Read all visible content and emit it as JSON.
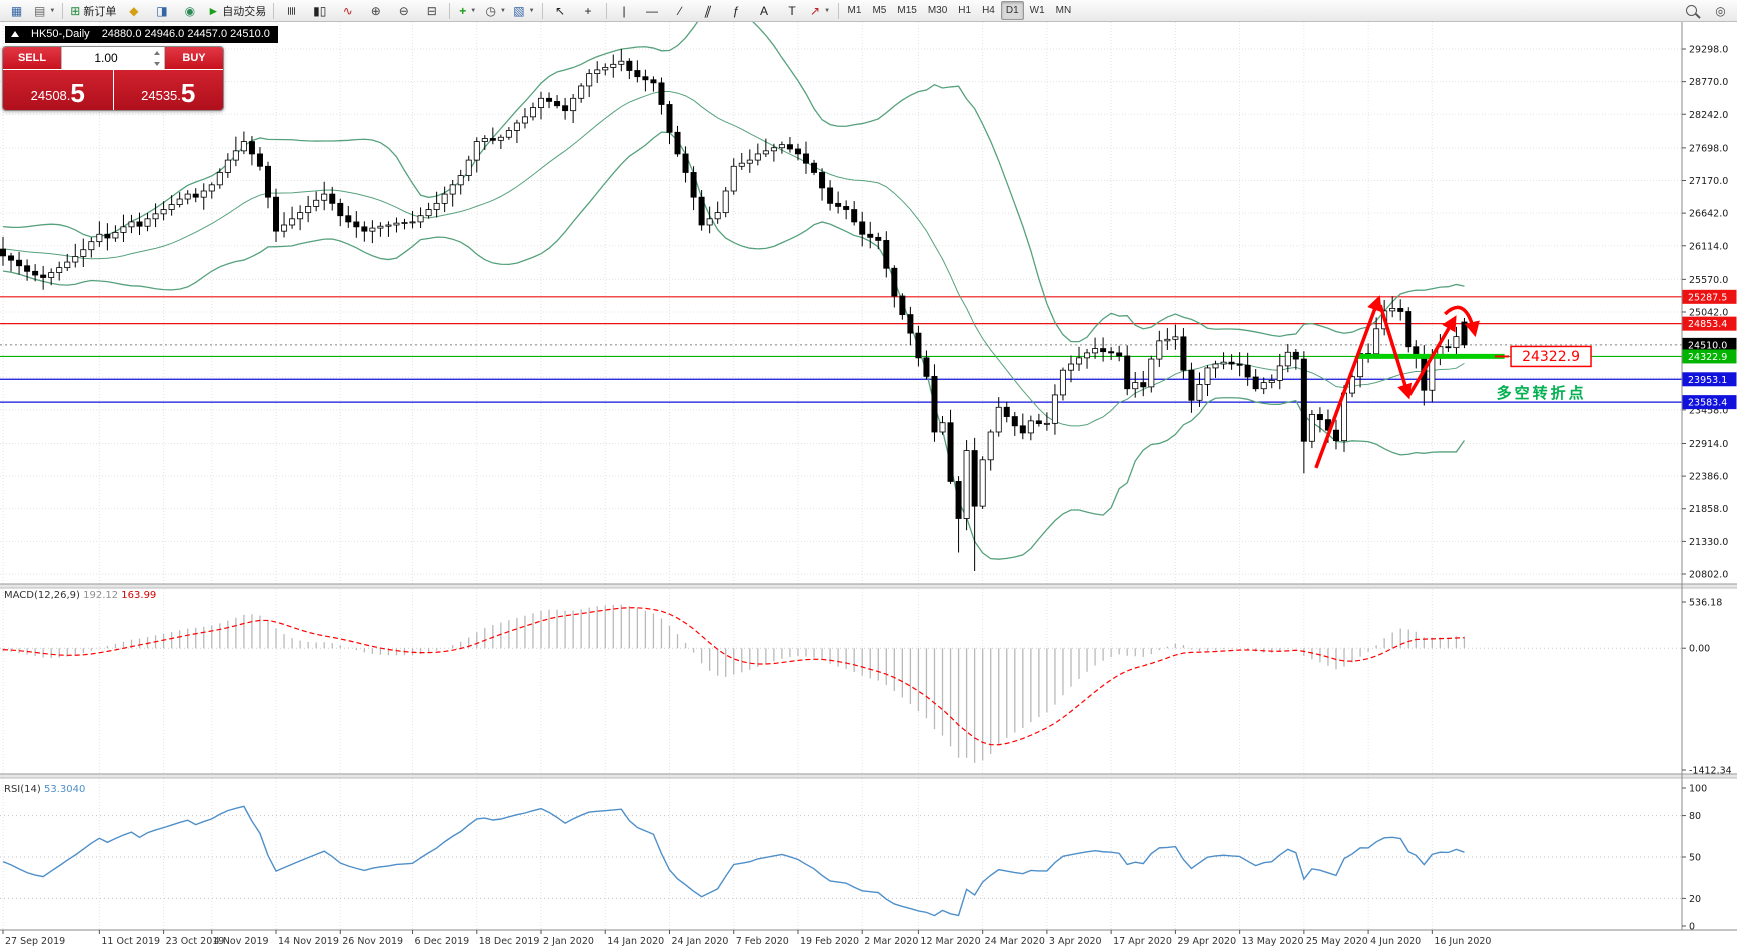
{
  "toolbar": {
    "buttons": [
      {
        "name": "new-chart",
        "icon": "new-chart-icon"
      },
      {
        "name": "profiles",
        "icon": "profiles-icon",
        "caret": true
      },
      {
        "name": "sep1",
        "sep": true
      },
      {
        "name": "new-order",
        "icon": "new-order-icon",
        "label": "新订单"
      },
      {
        "name": "market-watch",
        "icon": "market-watch-icon"
      },
      {
        "name": "data-window",
        "icon": "data-window-icon"
      },
      {
        "name": "navigator",
        "icon": "navigator-icon"
      },
      {
        "name": "autotrading",
        "icon": "autotrading-icon",
        "label": "自动交易"
      },
      {
        "name": "sep2",
        "sep": true
      },
      {
        "name": "bar-chart-mode",
        "icon": "bars-icon"
      },
      {
        "name": "candle-chart-mode",
        "icon": "candles-icon"
      },
      {
        "name": "line-chart-mode",
        "icon": "line-chart-icon"
      },
      {
        "name": "zoom-in",
        "icon": "zoom-in-icon"
      },
      {
        "name": "zoom-out",
        "icon": "zoom-out-icon"
      },
      {
        "name": "tile-windows",
        "icon": "tile-windows-icon"
      },
      {
        "name": "sep3",
        "sep": true
      },
      {
        "name": "indicators",
        "icon": "indicators-icon",
        "caret": true
      },
      {
        "name": "periods",
        "icon": "periods-icon",
        "caret": true
      },
      {
        "name": "templates",
        "icon": "templates-icon",
        "caret": true
      },
      {
        "name": "sep4",
        "sep": true
      },
      {
        "name": "cursor",
        "icon": "cursor-icon"
      },
      {
        "name": "crosshair",
        "icon": "crosshair-icon"
      },
      {
        "name": "sep5",
        "sep": true
      },
      {
        "name": "vertical-line",
        "icon": "vertical-line-icon"
      },
      {
        "name": "horizontal-line",
        "icon": "horizontal-line-icon"
      },
      {
        "name": "trendline",
        "icon": "trendline-icon"
      },
      {
        "name": "channel",
        "icon": "channel-icon"
      },
      {
        "name": "fibonacci",
        "icon": "fibonacci-icon"
      },
      {
        "name": "text",
        "icon": "text-icon"
      },
      {
        "name": "text-label",
        "icon": "text-label-icon"
      },
      {
        "name": "shapes",
        "icon": "shapes-icon",
        "caret": true
      },
      {
        "name": "sep6",
        "sep": true
      }
    ],
    "timeframes": [
      "M1",
      "M5",
      "M15",
      "M30",
      "H1",
      "H4",
      "D1",
      "W1",
      "MN"
    ],
    "active_timeframe": "D1"
  },
  "chart": {
    "title": "HK50-,Daily",
    "ohlc": "24880.0 24946.0 24457.0 24510.0"
  },
  "trade_panel": {
    "sell_label": "SELL",
    "buy_label": "BUY",
    "volume": "1.00",
    "sell_price_small": "24508.",
    "sell_price_big": "5",
    "buy_price_small": "24535.",
    "buy_price_big": "5"
  },
  "chart_data": {
    "type": "candlestick",
    "symbol": "HK50-",
    "timeframe": "Daily",
    "price_range": {
      "top": 29298.0,
      "bottom": 20802.0
    },
    "y_axis_labels": [
      {
        "t": "29298.0",
        "p": 29298.0
      },
      {
        "t": "28770.0",
        "p": 28770.0
      },
      {
        "t": "28242.0",
        "p": 28242.0
      },
      {
        "t": "27698.0",
        "p": 27698.0
      },
      {
        "t": "27170.0",
        "p": 27170.0
      },
      {
        "t": "26642.0",
        "p": 26642.0
      },
      {
        "t": "26114.0",
        "p": 26114.0
      },
      {
        "t": "25570.0",
        "p": 25570.0
      },
      {
        "t": "25042.0",
        "p": 25042.0
      },
      {
        "t": "23458.0",
        "p": 23458.0
      },
      {
        "t": "22914.0",
        "p": 22914.0
      },
      {
        "t": "22386.0",
        "p": 22386.0
      },
      {
        "t": "21858.0",
        "p": 21858.0
      },
      {
        "t": "21330.0",
        "p": 21330.0
      },
      {
        "t": "20802.0",
        "p": 20802.0
      }
    ],
    "extra_grid_prices": [
      24514.0,
      23986.0
    ],
    "special_labels": [
      {
        "text": "25287.5",
        "price": 25287.5,
        "bg": "#ee1111"
      },
      {
        "text": "24853.4",
        "price": 24853.4,
        "bg": "#ee1111"
      },
      {
        "text": "24510.0",
        "price": 24510.0,
        "bg": "#000000"
      },
      {
        "text": "24322.9",
        "price": 24322.9,
        "bg": "#00b400"
      },
      {
        "text": "23953.1",
        "price": 23953.1,
        "bg": "#1111dd"
      },
      {
        "text": "23583.4",
        "price": 23583.4,
        "bg": "#1111dd"
      }
    ],
    "hlines": [
      {
        "price": 25287.5,
        "color": "#ee1111"
      },
      {
        "price": 24853.4,
        "color": "#ee1111"
      },
      {
        "price": 24322.9,
        "color": "#00b400"
      },
      {
        "price": 23953.1,
        "color": "#1111dd"
      },
      {
        "price": 23583.4,
        "color": "#1111dd"
      }
    ],
    "current_price": {
      "value": 24510.0,
      "color": "#888888"
    },
    "highlight_segment": {
      "price": 24322.9,
      "from_index": 168.5,
      "to_index": 187,
      "color": "#00d000",
      "width": 5
    },
    "annotations": {
      "color": "#ff0000",
      "arrows": [
        {
          "from": {
            "index": 163.5,
            "price": 22520
          },
          "to": {
            "index": 171.3,
            "price": 25260
          }
        },
        {
          "from": {
            "index": 171.5,
            "price": 25150
          },
          "to": {
            "index": 175.0,
            "price": 23680
          }
        },
        {
          "from": {
            "index": 175.2,
            "price": 23700
          },
          "to": {
            "index": 180.8,
            "price": 24940
          }
        }
      ],
      "curve": {
        "from": {
          "index": 179.6,
          "price": 25010
        },
        "ctrl": {
          "index": 182.2,
          "price": 25330
        },
        "to": {
          "index": 183.3,
          "price": 24690
        }
      },
      "price_label": {
        "text": "24322.9",
        "color": "#ff0000",
        "index": 187.8,
        "price": 24322.9
      },
      "note_text": {
        "text": "多空转折点",
        "color": "#00b050",
        "index": 186,
        "price": 23730
      }
    },
    "x_axis_labels": [
      {
        "i": 0,
        "t": "27 Sep 2019"
      },
      {
        "i": 12,
        "t": "11 Oct 2019"
      },
      {
        "i": 20,
        "t": "23 Oct 2019"
      },
      {
        "i": 26,
        "t": "4 Nov 2019"
      },
      {
        "i": 34,
        "t": "14 Nov 2019"
      },
      {
        "i": 42,
        "t": "26 Nov 2019"
      },
      {
        "i": 51,
        "t": "6 Dec 2019"
      },
      {
        "i": 59,
        "t": "18 Dec 2019"
      },
      {
        "i": 67,
        "t": "2 Jan 2020"
      },
      {
        "i": 75,
        "t": "14 Jan 2020"
      },
      {
        "i": 83,
        "t": "24 Jan 2020"
      },
      {
        "i": 91,
        "t": "7 Feb 2020"
      },
      {
        "i": 99,
        "t": "19 Feb 2020"
      },
      {
        "i": 107,
        "t": "2 Mar 2020"
      },
      {
        "i": 114,
        "t": "12 Mar 2020"
      },
      {
        "i": 122,
        "t": "24 Mar 2020"
      },
      {
        "i": 130,
        "t": "3 Apr 2020"
      },
      {
        "i": 138,
        "t": "17 Apr 2020"
      },
      {
        "i": 146,
        "t": "29 Apr 2020"
      },
      {
        "i": 154,
        "t": "13 May 2020"
      },
      {
        "i": 162,
        "t": "25 May 2020"
      },
      {
        "i": 170,
        "t": "4 Jun 2020"
      },
      {
        "i": 178,
        "t": "16 Jun 2020"
      }
    ],
    "candles": {
      "up_color": "#ffffff",
      "down_color": "#000000",
      "outline": "#000000",
      "seed_closes": [
        26100,
        26180,
        26120,
        26010,
        25880,
        25780,
        25900,
        26080,
        26220,
        26340,
        26410,
        26350,
        26250,
        26140,
        26020,
        25900,
        25820,
        25880,
        25990,
        26060
      ],
      "closes": [
        25950,
        25880,
        25790,
        25700,
        25640,
        25600,
        25680,
        25760,
        25850,
        25940,
        26050,
        26180,
        26300,
        26240,
        26330,
        26420,
        26500,
        26430,
        26550,
        26630,
        26700,
        26780,
        26870,
        26950,
        26900,
        27000,
        27100,
        27300,
        27500,
        27650,
        27800,
        27600,
        27400,
        26900,
        26350,
        26450,
        26550,
        26650,
        26750,
        26850,
        26950,
        26800,
        26600,
        26500,
        26420,
        26350,
        26400,
        26430,
        26450,
        26480,
        26490,
        26500,
        26600,
        26700,
        26800,
        26950,
        27100,
        27250,
        27500,
        27800,
        27850,
        27820,
        27870,
        27980,
        28100,
        28200,
        28350,
        28500,
        28450,
        28380,
        28300,
        28500,
        28700,
        28900,
        28960,
        29000,
        29050,
        29100,
        28950,
        28850,
        28800,
        28750,
        28400,
        27950,
        27600,
        27300,
        26900,
        26450,
        26550,
        26650,
        27000,
        27400,
        27450,
        27500,
        27600,
        27650,
        27700,
        27750,
        27680,
        27600,
        27450,
        27300,
        27050,
        26800,
        26750,
        26700,
        26500,
        26300,
        26250,
        26200,
        25750,
        25300,
        25000,
        24700,
        24300,
        24000,
        23100,
        23250,
        22300,
        21700,
        22800,
        21900,
        22650,
        23100,
        23500,
        23350,
        23200,
        23085,
        23280,
        23236,
        23240,
        23700,
        24100,
        24200,
        24300,
        24380,
        24450,
        24400,
        24380,
        24330,
        23800,
        23900,
        23830,
        24280,
        24575,
        24600,
        24640,
        24100,
        23613,
        23870,
        24137,
        24200,
        24230,
        24200,
        24180,
        23990,
        23800,
        23900,
        23935,
        24170,
        24390,
        24280,
        22950,
        23384,
        23300,
        23130,
        22960,
        23730,
        23995,
        24370,
        24366,
        24770,
        25060,
        25100,
        25050,
        24480,
        24300,
        23776,
        24344,
        24480,
        24465,
        24643,
        24510
      ],
      "high_overrides": {
        "29": 27880,
        "77": 29298,
        "173": 25297
      },
      "low_overrides": {
        "119": 21150,
        "121": 20850,
        "162": 22430,
        "177": 23529
      },
      "last": {
        "open": 24880.0,
        "high": 24946.0,
        "low": 24457.0,
        "close": 24510.0
      }
    },
    "bollinger": {
      "period": 20,
      "deviation": 2,
      "color": "#56a17c"
    },
    "macd": {
      "label": "MACD(12,26,9)",
      "value_main": "192.12",
      "value_signal": "163.99",
      "fast": 12,
      "slow": 26,
      "signal": 9,
      "scale_max": 536.18,
      "scale_min": -1412.34,
      "axis_labels": [
        {
          "t": "536.18",
          "v": 536.18
        },
        {
          "t": "0.00",
          "v": 0
        },
        {
          "t": "-1412.34",
          "v": -1412.34
        }
      ],
      "histogram_color": "#b9b9b9",
      "signal_color": "#ff0000"
    },
    "rsi": {
      "label": "RSI(14)",
      "value": "53.3040",
      "period": 14,
      "color": "#4f8fc9",
      "axis_labels": [
        {
          "t": "100",
          "v": 100
        },
        {
          "t": "80",
          "v": 80
        },
        {
          "t": "50",
          "v": 50
        },
        {
          "t": "20",
          "v": 20
        },
        {
          "t": "0",
          "v": 0
        }
      ],
      "levels": [
        80,
        50,
        20
      ]
    }
  }
}
